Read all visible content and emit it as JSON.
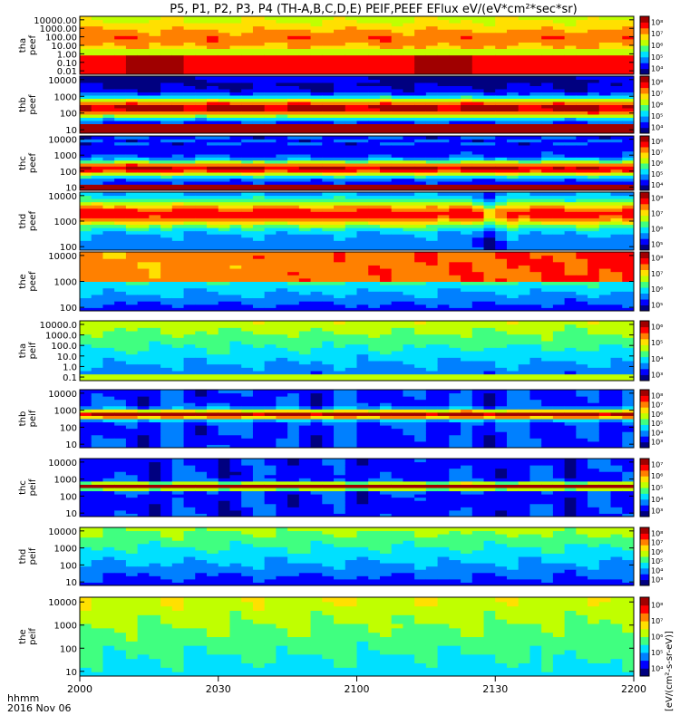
{
  "header": {
    "title": "P5, P1, P2, P3, P4 (TH-A,B,C,D,E) PEIF,PEEF EFlux eV/(eV*cm²*sec*sr)"
  },
  "x_axis": {
    "label_line1": "hhmm",
    "label_line2": "2016 Nov 06",
    "tick_labels": [
      "2000",
      "2030",
      "2100",
      "2130",
      "2200"
    ]
  },
  "colorbar": {
    "side_label": "[eV/(cm²-s-sr-eV)]"
  },
  "colors": {
    "jet": [
      "#000080",
      "#0000ff",
      "#0080ff",
      "#00e0ff",
      "#40ff80",
      "#c0ff00",
      "#ffe000",
      "#ff8000",
      "#ff0000",
      "#a00000"
    ]
  },
  "chart_data": {
    "type": "heatmap",
    "x_range": [
      "2000",
      "2200"
    ],
    "x_ticks": [
      "2000",
      "2030",
      "2100",
      "2130",
      "2200"
    ],
    "panels": [
      {
        "ylabel": [
          "tha",
          "peef"
        ],
        "ytick_labels": [
          "10000.00",
          "1000.00",
          "100.00",
          "10.00",
          "1.00",
          "0.10",
          "0.01"
        ],
        "ytick_values": [
          10000,
          1000,
          100,
          10,
          1,
          0.1,
          0.01
        ],
        "ylog": true,
        "cbar_ticks": [
          "10⁸",
          "10⁷",
          "10⁶",
          "10⁵",
          "10⁴"
        ],
        "profile": "tha_peef"
      },
      {
        "ylabel": [
          "thb",
          "peef"
        ],
        "ytick_labels": [
          "10000",
          "1000",
          "100",
          "10"
        ],
        "ytick_values": [
          10000,
          1000,
          100,
          10
        ],
        "ylog": true,
        "cbar_ticks": [
          "10⁸",
          "10⁷",
          "10⁶",
          "10⁵",
          "10⁴"
        ],
        "profile": "thb_peef"
      },
      {
        "ylabel": [
          "thc",
          "peef"
        ],
        "ytick_labels": [
          "10000",
          "1000",
          "100",
          "10"
        ],
        "ytick_values": [
          10000,
          1000,
          100,
          10
        ],
        "ylog": true,
        "cbar_ticks": [
          "10⁸",
          "10⁷",
          "10⁶",
          "10⁵",
          "10⁴"
        ],
        "profile": "thc_peef"
      },
      {
        "ylabel": [
          "thd",
          "peef"
        ],
        "ytick_labels": [
          "10000",
          "1000",
          "100"
        ],
        "ytick_values": [
          10000,
          1000,
          100
        ],
        "ylog": true,
        "cbar_ticks": [
          "10⁸",
          "10⁷",
          "10⁶",
          "10⁵"
        ],
        "profile": "thd_peef"
      },
      {
        "ylabel": [
          "the",
          "peef"
        ],
        "ytick_labels": [
          "10000",
          "1000",
          "100"
        ],
        "ytick_values": [
          10000,
          1000,
          100
        ],
        "ylog": true,
        "cbar_ticks": [
          "10⁸",
          "10⁷",
          "10⁶",
          "10⁵"
        ],
        "profile": "the_peef"
      },
      {
        "ylabel": [
          "tha",
          "peif"
        ],
        "ytick_labels": [
          "10000.0",
          "1000.0",
          "100.0",
          "10.0",
          "1.0",
          "0.1"
        ],
        "ytick_values": [
          10000,
          1000,
          100,
          10,
          1,
          0.1
        ],
        "ylog": true,
        "cbar_ticks": [
          "10⁶",
          "10⁵",
          "10⁴",
          "10³"
        ],
        "profile": "tha_peif"
      },
      {
        "ylabel": [
          "thb",
          "peif"
        ],
        "ytick_labels": [
          "10000",
          "1000",
          "100",
          "10"
        ],
        "ytick_values": [
          10000,
          1000,
          100,
          10
        ],
        "ylog": true,
        "cbar_ticks": [
          "10⁸",
          "10⁷",
          "10⁶",
          "10⁵",
          "10⁴",
          "10³"
        ],
        "profile": "thb_peif"
      },
      {
        "ylabel": [
          "thc",
          "peif"
        ],
        "ytick_labels": [
          "10000",
          "1000",
          "100",
          "10"
        ],
        "ytick_values": [
          10000,
          1000,
          100,
          10
        ],
        "ylog": true,
        "cbar_ticks": [
          "10⁷",
          "10⁶",
          "10⁵",
          "10⁴",
          "10³"
        ],
        "profile": "thc_peif"
      },
      {
        "ylabel": [
          "thd",
          "peif"
        ],
        "ytick_labels": [
          "10000",
          "1000",
          "100",
          "10"
        ],
        "ytick_values": [
          10000,
          1000,
          100,
          10
        ],
        "ylog": true,
        "cbar_ticks": [
          "10⁸",
          "10⁷",
          "10⁶",
          "10⁵",
          "10⁴",
          "10³"
        ],
        "profile": "thd_peif"
      },
      {
        "ylabel": [
          "the",
          "peif"
        ],
        "ytick_labels": [
          "10000",
          "1000",
          "100",
          "10"
        ],
        "ytick_values": [
          10000,
          1000,
          100,
          10
        ],
        "ylog": true,
        "cbar_ticks": [
          "10⁸",
          "10⁷",
          "10⁶",
          "10⁵",
          "10⁴"
        ],
        "profile": "the_peif"
      }
    ]
  }
}
